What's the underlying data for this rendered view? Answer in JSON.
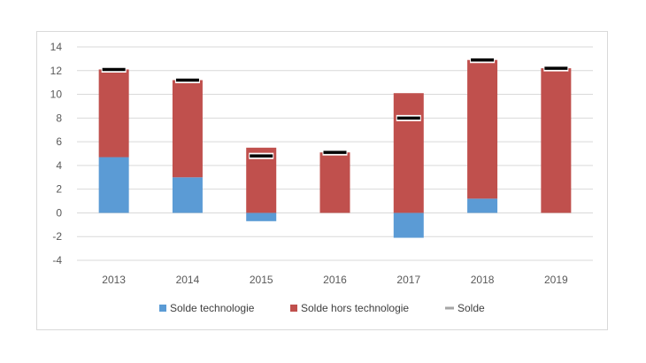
{
  "chart_data": {
    "type": "bar",
    "stacked": true,
    "categories": [
      "2013",
      "2014",
      "2015",
      "2016",
      "2017",
      "2018",
      "2019"
    ],
    "series": [
      {
        "name": "Solde technologie",
        "kind": "bar",
        "color": "#5b9bd5",
        "values": [
          4.7,
          3.0,
          -0.7,
          0.0,
          -2.1,
          1.2,
          0.0
        ]
      },
      {
        "name": "Solde hors technologie",
        "kind": "bar",
        "color": "#c0504d",
        "values": [
          7.4,
          8.2,
          5.5,
          5.1,
          10.1,
          11.7,
          12.2
        ]
      },
      {
        "name": "Solde",
        "kind": "marker",
        "color": "#000000",
        "values": [
          12.1,
          11.2,
          4.8,
          5.1,
          8.0,
          12.9,
          12.2
        ]
      }
    ],
    "yticks": [
      "14",
      "12",
      "10",
      "8",
      "6",
      "4",
      "2",
      "0",
      "-2",
      "-4"
    ],
    "ylim": [
      -4,
      14
    ],
    "ytick_step": 2,
    "grid": true,
    "legend_position": "bottom"
  }
}
